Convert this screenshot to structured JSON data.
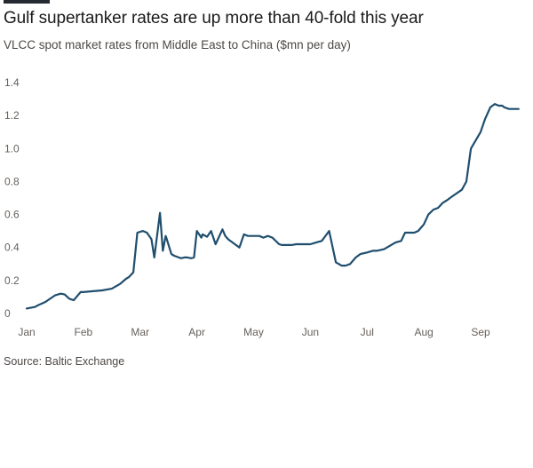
{
  "header": {
    "title": "Gulf supertanker rates are up more than 40-fold this year",
    "subtitle": "VLCC spot market rates from Middle East to China ($mn per day)"
  },
  "footer": {
    "source": "Source: Baltic Exchange"
  },
  "colors": {
    "line": "#1f4e6e",
    "grid": "#e6e1dc",
    "axis": "#66605c"
  },
  "chart_data": {
    "type": "line",
    "title": "Gulf supertanker rates are up more than 40-fold this year",
    "subtitle": "VLCC spot market rates from Middle East to China ($mn per day)",
    "xlabel": "",
    "ylabel": "",
    "ylim": [
      0,
      1.4
    ],
    "xlim": [
      0,
      8.75
    ],
    "x_unit": "months since Jan 1",
    "yticks": [
      0,
      0.2,
      0.4,
      0.6,
      0.8,
      1.0,
      1.2,
      1.4
    ],
    "ytick_labels": [
      "0",
      "0.2",
      "0.4",
      "0.6",
      "0.8",
      "1.0",
      "1.2",
      "1.4"
    ],
    "xticks": [
      0,
      1,
      2,
      3,
      4,
      5,
      6,
      7,
      8
    ],
    "xtick_labels": [
      "Jan",
      "Feb",
      "Mar",
      "Apr",
      "May",
      "Jun",
      "Jul",
      "Aug",
      "Sep"
    ],
    "grid": false,
    "legend": "none",
    "series": [
      {
        "name": "",
        "x": [
          0,
          0.15,
          0.2,
          0.33,
          0.5,
          0.6,
          0.67,
          0.75,
          0.83,
          0.95,
          1.0,
          1.17,
          1.33,
          1.5,
          1.65,
          1.75,
          1.8,
          1.88,
          1.95,
          2.05,
          2.12,
          2.2,
          2.25,
          2.35,
          2.4,
          2.45,
          2.47,
          2.55,
          2.6,
          2.68,
          2.72,
          2.78,
          2.83,
          2.9,
          2.95,
          3.0,
          3.08,
          3.1,
          3.18,
          3.25,
          3.33,
          3.45,
          3.5,
          3.55,
          3.67,
          3.75,
          3.83,
          3.9,
          4.0,
          4.1,
          4.17,
          4.25,
          4.33,
          4.45,
          4.5,
          4.67,
          4.75,
          4.83,
          4.92,
          5.0,
          5.1,
          5.2,
          5.33,
          5.45,
          5.55,
          5.62,
          5.7,
          5.8,
          5.88,
          6.0,
          6.1,
          6.17,
          6.3,
          6.5,
          6.6,
          6.67,
          6.83,
          6.9,
          7.0,
          7.08,
          7.17,
          7.25,
          7.33,
          7.42,
          7.5,
          7.67,
          7.75,
          7.83,
          8.0,
          8.08,
          8.17,
          8.25,
          8.32,
          8.38,
          8.42,
          8.5,
          8.55,
          8.6,
          8.67
        ],
        "values": [
          0.03,
          0.04,
          0.05,
          0.07,
          0.11,
          0.12,
          0.115,
          0.09,
          0.08,
          0.13,
          0.13,
          0.135,
          0.14,
          0.15,
          0.18,
          0.21,
          0.22,
          0.25,
          0.49,
          0.5,
          0.49,
          0.45,
          0.34,
          0.61,
          0.38,
          0.47,
          0.45,
          0.36,
          0.35,
          0.34,
          0.335,
          0.34,
          0.34,
          0.335,
          0.34,
          0.5,
          0.46,
          0.48,
          0.465,
          0.5,
          0.42,
          0.51,
          0.47,
          0.45,
          0.42,
          0.4,
          0.48,
          0.47,
          0.47,
          0.47,
          0.46,
          0.47,
          0.46,
          0.42,
          0.415,
          0.415,
          0.42,
          0.42,
          0.42,
          0.42,
          0.43,
          0.44,
          0.5,
          0.31,
          0.29,
          0.29,
          0.3,
          0.34,
          0.36,
          0.37,
          0.38,
          0.38,
          0.39,
          0.43,
          0.44,
          0.49,
          0.49,
          0.5,
          0.54,
          0.6,
          0.63,
          0.64,
          0.67,
          0.69,
          0.71,
          0.75,
          0.8,
          1.0,
          1.1,
          1.18,
          1.25,
          1.27,
          1.26,
          1.26,
          1.25,
          1.24,
          1.24,
          1.24,
          1.24
        ]
      }
    ]
  }
}
